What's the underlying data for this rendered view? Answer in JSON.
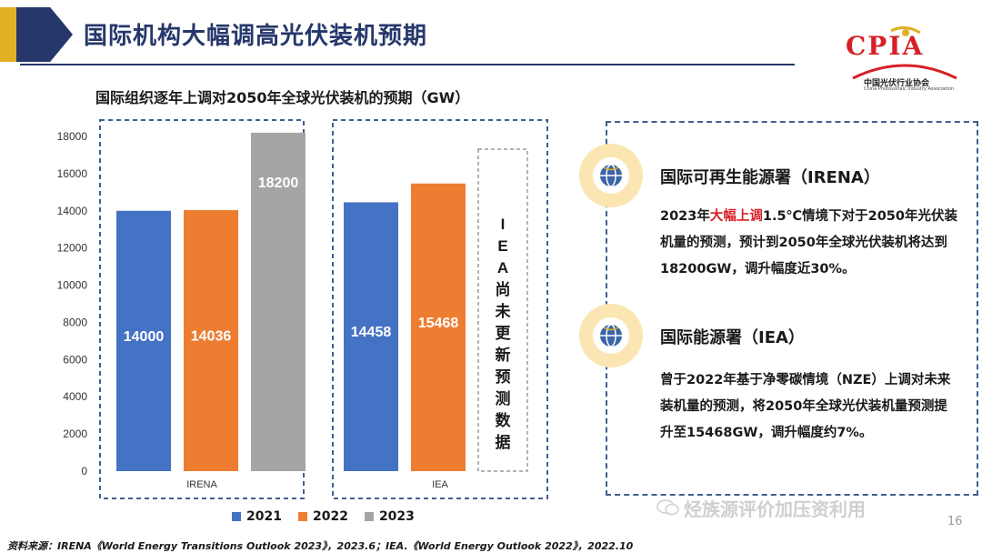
{
  "header": {
    "title": "国际机构大幅调高光伏装机预期"
  },
  "logo": {
    "acronym": "CPIA",
    "name_cn": "中国光伏行业协会",
    "name_en": "China Photovoltaic Industry Association"
  },
  "chart_data": {
    "type": "bar",
    "title": "国际组织逐年上调对2050年全球光伏装机的预期（GW）",
    "yticks": [
      0,
      2000,
      4000,
      6000,
      8000,
      10000,
      12000,
      14000,
      16000,
      18000
    ],
    "ylim": [
      0,
      18000
    ],
    "groups": [
      {
        "name": "IRENA",
        "bars": [
          {
            "series": "2021",
            "value": 14000,
            "label": "14000"
          },
          {
            "series": "2022",
            "value": 14036,
            "label": "14036"
          },
          {
            "series": "2023",
            "value": 18200,
            "label": "18200"
          }
        ]
      },
      {
        "name": "IEA",
        "bars": [
          {
            "series": "2021",
            "value": 14458,
            "label": "14458"
          },
          {
            "series": "2022",
            "value": 15468,
            "label": "15468"
          }
        ],
        "note": "IEA尚未更新预测数据"
      }
    ],
    "series": [
      {
        "name": "2021",
        "color": "#4472c4"
      },
      {
        "name": "2022",
        "color": "#ed7d31"
      },
      {
        "name": "2023",
        "color": "#a5a5a5"
      }
    ]
  },
  "panel": {
    "irena_title": "国际可再生能源署（IRENA）",
    "irena_text_a": "2023年",
    "irena_text_hl": "大幅上调",
    "irena_text_b": "1.5℃情境下对于2050年光伏装机量的预测，预计到2050年全球光伏装机将达到18200GW，调升幅度近30%。",
    "iea_title": "国际能源署（IEA）",
    "iea_text": "曾于2022年基于净零碳情境（NZE）上调对未来装机量的预测，将2050年全球光伏装机量预测提升至15468GW，调升幅度约7%。"
  },
  "legend": [
    "2021",
    "2022",
    "2023"
  ],
  "source": "资料来源：IRENA《World Energy Transitions Outlook 2023》，2023.6；IEA.《World Energy Outlook 2022》，2022.10",
  "watermark": "烃族源评价加压资利用",
  "page_number": "16"
}
